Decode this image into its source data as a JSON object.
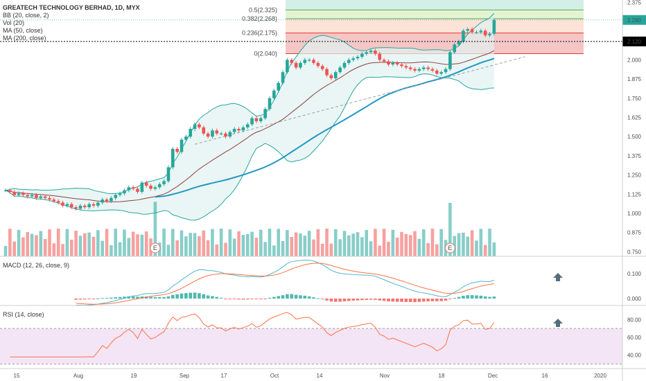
{
  "chart_data": {
    "type": "candlestick",
    "title": "GREATECH TECHNOLOGY BERHAD, 1D, MYX",
    "indicators": [
      "BB (20, close, 2)",
      "Vol (20)",
      "MA (50, close)",
      "MA (200, close)"
    ],
    "macd_label": "MACD (12, 26, close, 9)",
    "rsi_label": "RSI (14, close)",
    "x_ticks": [
      "15",
      "Aug",
      "19",
      "Sep",
      "17",
      "Oct",
      "14",
      "Nov",
      "18",
      "Dec",
      "16",
      "2020"
    ],
    "price_ticks": [
      "2.375",
      "2.250",
      "2.125",
      "2.000",
      "1.875",
      "1.750",
      "1.625",
      "1.500",
      "1.375",
      "1.250",
      "1.125",
      "1.000",
      "0.875",
      "0.750"
    ],
    "macd_ticks": [
      "0.100",
      "0.000"
    ],
    "rsi_ticks": [
      "80.00",
      "60.00",
      "40.00"
    ],
    "ylim": [
      0.72,
      2.39
    ],
    "last_price": "2.260",
    "last_price_color": "#26a69a",
    "ref_price": "2.120",
    "fib_levels": [
      {
        "label": "0.5(2.325)",
        "value": 2.325
      },
      {
        "label": "0.382(2.268)",
        "value": 2.268
      },
      {
        "label": "0.236(2.175)",
        "value": 2.175
      },
      {
        "label": "0(2.040)",
        "value": 2.04
      }
    ],
    "closes": [
      1.15,
      1.14,
      1.12,
      1.13,
      1.12,
      1.11,
      1.12,
      1.1,
      1.11,
      1.1,
      1.09,
      1.08,
      1.07,
      1.05,
      1.06,
      1.04,
      1.03,
      1.05,
      1.04,
      1.06,
      1.05,
      1.07,
      1.09,
      1.08,
      1.1,
      1.12,
      1.13,
      1.15,
      1.17,
      1.16,
      1.14,
      1.2,
      1.18,
      1.16,
      1.17,
      1.19,
      1.21,
      1.3,
      1.42,
      1.4,
      1.48,
      1.5,
      1.55,
      1.58,
      1.56,
      1.52,
      1.5,
      1.54,
      1.52,
      1.52,
      1.5,
      1.53,
      1.55,
      1.54,
      1.56,
      1.58,
      1.62,
      1.6,
      1.62,
      1.68,
      1.75,
      1.8,
      1.85,
      1.92,
      2.0,
      1.98,
      1.95,
      1.98,
      2.0,
      2.0,
      1.98,
      1.96,
      1.94,
      1.9,
      1.88,
      1.92,
      1.95,
      1.98,
      2.0,
      2.01,
      2.02,
      2.04,
      2.05,
      2.06,
      2.04,
      2.0,
      1.99,
      1.97,
      1.98,
      1.97,
      1.96,
      1.95,
      1.94,
      1.93,
      1.94,
      1.95,
      1.94,
      1.93,
      1.91,
      1.92,
      1.94,
      2.05,
      2.1,
      2.12,
      2.19,
      2.2,
      2.18,
      2.18,
      2.19,
      2.16,
      2.17,
      2.26
    ],
    "event_markers": [
      "E",
      "E"
    ],
    "macd_up_arrow": true,
    "rsi_up_arrow": true
  },
  "colors": {
    "up": "#26a69a",
    "down": "#ef5350",
    "bb_fill": "#e0f2f1",
    "bb_line": "#26a69a",
    "ma50": "#2196c4",
    "ma20": "#8d3d3d",
    "rsi_band": "#f3e5f5",
    "rsi_line": "#ff7043",
    "macd_line": "#4db6ce",
    "signal_line": "#ff7043"
  }
}
